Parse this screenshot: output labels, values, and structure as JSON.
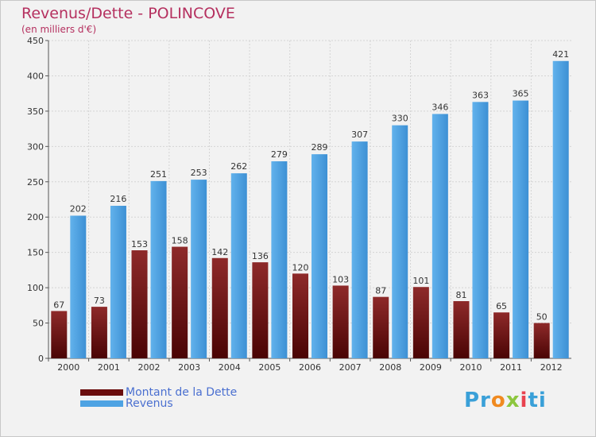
{
  "header": {
    "title": "Revenus/Dette - POLINCOVE",
    "subtitle": "(en milliers d'€)"
  },
  "legend": {
    "items": [
      {
        "label": "Montant de la Dette",
        "color": "#6b0d0d"
      },
      {
        "label": "Revenus",
        "color": "#4ea3e3"
      }
    ]
  },
  "brand": {
    "parts": [
      "Pr",
      "o",
      "x",
      "i",
      "ti"
    ]
  },
  "chart_data": {
    "type": "bar",
    "title": "Revenus/Dette - POLINCOVE",
    "subtitle": "(en milliers d'€)",
    "xlabel": "",
    "ylabel": "",
    "ylim": [
      0,
      450
    ],
    "yticks": [
      0,
      50,
      100,
      150,
      200,
      250,
      300,
      350,
      400,
      450
    ],
    "grid": true,
    "legend_position": "bottom-left",
    "categories": [
      "2000",
      "2001",
      "2002",
      "2003",
      "2004",
      "2005",
      "2006",
      "2007",
      "2008",
      "2009",
      "2010",
      "2011",
      "2012"
    ],
    "series": [
      {
        "name": "Montant de la Dette",
        "color": "#6b0d0d",
        "values": [
          67,
          73,
          153,
          158,
          142,
          136,
          120,
          103,
          87,
          101,
          81,
          65,
          50
        ]
      },
      {
        "name": "Revenus",
        "color": "#4ea3e3",
        "values": [
          202,
          216,
          251,
          253,
          262,
          279,
          289,
          307,
          330,
          346,
          363,
          365,
          421
        ]
      }
    ]
  }
}
